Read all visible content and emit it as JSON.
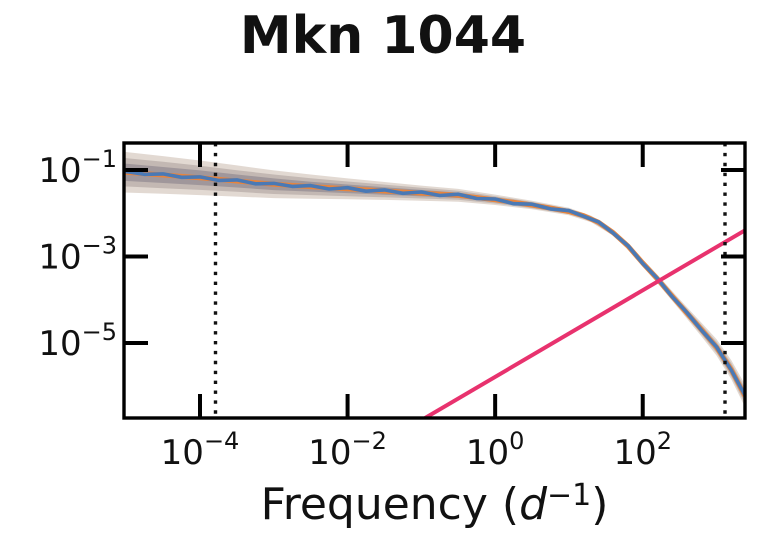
{
  "title": "Mkn 1044",
  "xlabel": {
    "prefix": "Frequency (",
    "var": "d",
    "sup": "−1",
    "suffix": ")"
  },
  "chart_data": {
    "type": "line",
    "title": "Mkn 1044",
    "xlabel": "Frequency (d^-1)",
    "ylabel": "",
    "xscale": "log",
    "yscale": "log",
    "grid": false,
    "legend": "none",
    "xlim_log": [
      -5.03,
      3.386
    ],
    "ylim_log": [
      -6.734,
      -0.376
    ],
    "x_ticks": [
      {
        "base": "10",
        "exp": "−4",
        "log": -4
      },
      {
        "base": "10",
        "exp": "−2",
        "log": -2
      },
      {
        "base": "10",
        "exp": "0",
        "log": 0
      },
      {
        "base": "10",
        "exp": "2",
        "log": 2
      }
    ],
    "y_ticks": [
      {
        "base": "10",
        "exp": "−1",
        "log": -1
      },
      {
        "base": "10",
        "exp": "−3",
        "log": -3
      },
      {
        "base": "10",
        "exp": "−5",
        "log": -5
      }
    ],
    "vlines_log": [
      {
        "name": "observing-window-low",
        "logf": -3.79
      },
      {
        "name": "observing-window-high",
        "logf": 3.115
      }
    ],
    "series": [
      {
        "name": "psd-posterior-median",
        "color": "#4a79b5",
        "points_log": [
          [
            -5.03,
            -1.03
          ],
          [
            -4.75,
            -1.1
          ],
          [
            -4.5,
            -1.09
          ],
          [
            -4.25,
            -1.17
          ],
          [
            -4.0,
            -1.16
          ],
          [
            -3.75,
            -1.24
          ],
          [
            -3.5,
            -1.23
          ],
          [
            -3.25,
            -1.32
          ],
          [
            -3.0,
            -1.31
          ],
          [
            -2.75,
            -1.38
          ],
          [
            -2.5,
            -1.36
          ],
          [
            -2.25,
            -1.44
          ],
          [
            -2.0,
            -1.41
          ],
          [
            -1.75,
            -1.49
          ],
          [
            -1.5,
            -1.46
          ],
          [
            -1.25,
            -1.54
          ],
          [
            -1.0,
            -1.51
          ],
          [
            -0.75,
            -1.59
          ],
          [
            -0.5,
            -1.56
          ],
          [
            -0.25,
            -1.66
          ],
          [
            0.0,
            -1.67
          ],
          [
            0.25,
            -1.78
          ],
          [
            0.5,
            -1.79
          ],
          [
            0.75,
            -1.9
          ],
          [
            1.0,
            -1.94
          ],
          [
            1.2,
            -2.07
          ],
          [
            1.4,
            -2.2
          ],
          [
            1.6,
            -2.46
          ],
          [
            1.8,
            -2.75
          ],
          [
            2.0,
            -3.16
          ],
          [
            2.2,
            -3.51
          ],
          [
            2.4,
            -3.93
          ],
          [
            2.6,
            -4.3
          ],
          [
            2.8,
            -4.71
          ],
          [
            3.0,
            -5.09
          ],
          [
            3.2,
            -5.63
          ],
          [
            3.386,
            -6.21
          ]
        ]
      },
      {
        "name": "psd-model-underlay",
        "color": "#e8843c",
        "points_log": [
          [
            -5.03,
            -1.05
          ],
          [
            -4.5,
            -1.115
          ],
          [
            -4.0,
            -1.18
          ],
          [
            -3.5,
            -1.255
          ],
          [
            -3.0,
            -1.33
          ],
          [
            -2.5,
            -1.385
          ],
          [
            -2.0,
            -1.435
          ],
          [
            -1.5,
            -1.485
          ],
          [
            -1.0,
            -1.535
          ],
          [
            -0.5,
            -1.585
          ],
          [
            0.0,
            -1.69
          ],
          [
            0.25,
            -1.75
          ],
          [
            0.5,
            -1.81
          ],
          [
            0.75,
            -1.88
          ],
          [
            1.0,
            -1.96
          ],
          [
            1.2,
            -2.06
          ],
          [
            1.4,
            -2.21
          ],
          [
            1.6,
            -2.45
          ],
          [
            1.8,
            -2.76
          ],
          [
            2.0,
            -3.15
          ],
          [
            2.2,
            -3.52
          ],
          [
            2.4,
            -3.92
          ],
          [
            2.6,
            -4.31
          ],
          [
            2.8,
            -4.7
          ],
          [
            3.0,
            -5.1
          ],
          [
            3.2,
            -5.62
          ],
          [
            3.386,
            -6.22
          ]
        ]
      },
      {
        "name": "poisson-noise-line",
        "color": "#e8326e",
        "points_log": [
          [
            -0.95,
            -6.734
          ],
          [
            3.386,
            -2.394
          ]
        ]
      }
    ],
    "credible_bands": {
      "comment": "columns: logf, base logP, half-width inner, mid, outer (decades)",
      "colors_outer_to_inner": [
        "rgba(150,120,95,0.28)",
        "rgba(110,95,95,0.27)",
        "rgba(80,75,100,0.30)"
      ],
      "points": [
        [
          -5.03,
          -1.05,
          0.2,
          0.33,
          0.47
        ],
        [
          -4.5,
          -1.115,
          0.185,
          0.305,
          0.435
        ],
        [
          -4.0,
          -1.18,
          0.17,
          0.28,
          0.4
        ],
        [
          -3.5,
          -1.255,
          0.15,
          0.25,
          0.36
        ],
        [
          -3.0,
          -1.33,
          0.135,
          0.225,
          0.32
        ],
        [
          -2.5,
          -1.385,
          0.115,
          0.195,
          0.28
        ],
        [
          -2.0,
          -1.435,
          0.1,
          0.17,
          0.24
        ],
        [
          -1.5,
          -1.485,
          0.0875,
          0.1475,
          0.2075
        ],
        [
          -1.0,
          -1.535,
          0.075,
          0.125,
          0.175
        ],
        [
          -0.5,
          -1.585,
          0.0625,
          0.105,
          0.1475
        ],
        [
          0.0,
          -1.69,
          0.05,
          0.085,
          0.12
        ],
        [
          0.5,
          -1.81,
          0.0425,
          0.0725,
          0.1
        ],
        [
          1.0,
          -1.96,
          0.035,
          0.06,
          0.085
        ],
        [
          1.3,
          -2.13,
          0.032,
          0.054,
          0.076
        ],
        [
          1.6,
          -2.45,
          0.03,
          0.05,
          0.07
        ],
        [
          1.8,
          -2.76,
          0.032,
          0.055,
          0.077
        ],
        [
          2.0,
          -3.15,
          0.035,
          0.06,
          0.085
        ],
        [
          2.2,
          -3.52,
          0.04,
          0.07,
          0.1
        ],
        [
          2.5,
          -4.11,
          0.05,
          0.085,
          0.12
        ],
        [
          2.8,
          -4.7,
          0.065,
          0.11,
          0.16
        ],
        [
          3.0,
          -5.1,
          0.075,
          0.13,
          0.19
        ],
        [
          3.2,
          -5.62,
          0.09,
          0.155,
          0.22
        ],
        [
          3.386,
          -6.22,
          0.105,
          0.18,
          0.26
        ]
      ]
    },
    "colors": {
      "axis": "#000000",
      "vline": "#111111",
      "median": "#4a79b5",
      "model": "#e8843c",
      "noise": "#e8326e"
    }
  }
}
